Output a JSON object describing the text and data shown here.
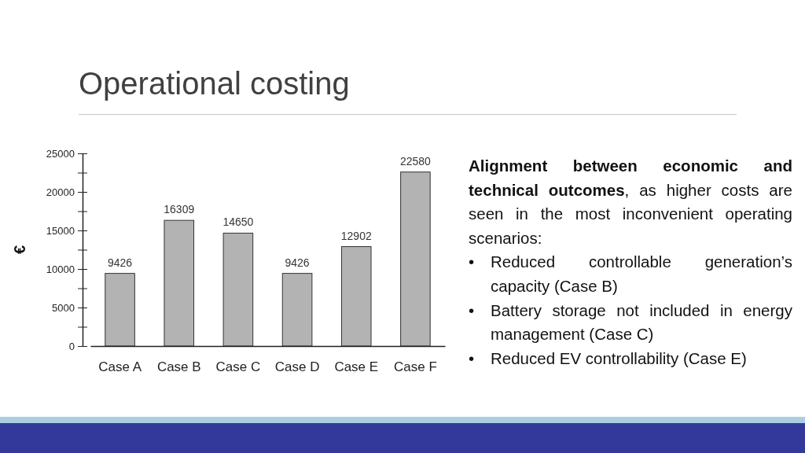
{
  "chart_data": {
    "type": "bar",
    "title": "Operational costing",
    "categories": [
      "Case A",
      "Case B",
      "Case C",
      "Case D",
      "Case E",
      "Case F"
    ],
    "values": [
      9426,
      16309,
      14650,
      9426,
      12902,
      22580
    ],
    "color": "#b3b3b3",
    "ylabel": "€",
    "ylim": [
      0,
      25000
    ],
    "yticks": [
      0,
      {
        "value": 2500,
        "label": null
      },
      5000,
      {
        "value": 7500,
        "label": null
      },
      10000,
      {
        "value": 12500,
        "label": null
      },
      15000,
      {
        "value": 17500,
        "label": null
      },
      20000,
      {
        "value": 22500,
        "label": null
      },
      25000
    ],
    "data_labels": true,
    "annotations": [
      "Alignment between economic and technical outcomes, as higher costs are seen in the most inconvenient operating scenarios:",
      "• Reduced controllable generation’s capacity (Case B)",
      "• Battery storage not included in energy management (Case C)",
      "• Reduced EV controllability (Case E)"
    ]
  }
}
